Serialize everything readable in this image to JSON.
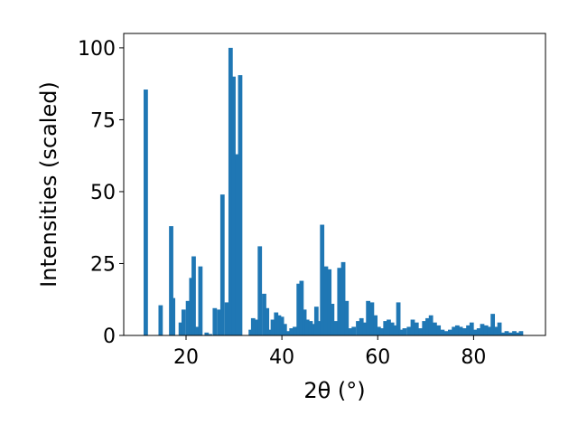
{
  "chart_data": {
    "type": "bar",
    "xlabel": "2θ (°)",
    "ylabel": "Intensities (scaled)",
    "xlim": [
      7,
      95
    ],
    "ylim": [
      0,
      105
    ],
    "x_ticks": [
      20,
      40,
      60,
      80
    ],
    "y_ticks": [
      0,
      25,
      50,
      75,
      100
    ],
    "grid": false,
    "bar_color": "#1f77b4",
    "bar_width": 0.9,
    "x": [
      11.6,
      14.7,
      16.9,
      17.3,
      18.9,
      19.5,
      20.4,
      21.1,
      21.6,
      22.3,
      23.0,
      24.3,
      25.0,
      26.0,
      26.9,
      27.6,
      28.5,
      29.3,
      29.9,
      30.7,
      31.3,
      33.5,
      34.0,
      34.8,
      35.4,
      36.3,
      36.9,
      37.5,
      38.1,
      38.8,
      39.4,
      40.0,
      40.6,
      41.3,
      42.0,
      42.7,
      43.5,
      44.1,
      44.7,
      45.3,
      46.0,
      46.6,
      47.2,
      47.8,
      48.4,
      49.2,
      49.9,
      50.5,
      51.2,
      52.0,
      52.8,
      53.5,
      54.3,
      55.0,
      55.9,
      56.6,
      57.3,
      58.0,
      58.8,
      59.5,
      60.2,
      60.9,
      61.6,
      62.3,
      63.0,
      63.7,
      64.3,
      64.9,
      65.6,
      66.5,
      67.3,
      68.1,
      68.9,
      69.7,
      70.4,
      71.1,
      71.9,
      72.7,
      73.5,
      74.3,
      75.1,
      75.9,
      76.6,
      77.3,
      78.1,
      78.9,
      79.6,
      80.4,
      81.1,
      81.8,
      82.6,
      83.3,
      84.0,
      84.7,
      85.4,
      86.1,
      86.9,
      87.7,
      88.5,
      89.2,
      89.9
    ],
    "values": [
      85.5,
      10.5,
      38,
      13,
      4.5,
      9,
      12,
      20,
      27.5,
      3,
      24,
      1,
      0.5,
      9.5,
      9,
      49,
      11.5,
      100,
      90,
      63,
      90.5,
      2,
      6,
      5.5,
      31,
      14.5,
      9.5,
      2,
      5.5,
      8,
      7,
      6.5,
      4,
      1.5,
      2.5,
      3,
      18,
      19,
      9,
      5.5,
      5,
      4,
      10,
      5,
      38.5,
      24,
      23,
      11,
      5,
      23.5,
      25.5,
      12,
      2.5,
      3,
      5,
      6,
      4.5,
      12,
      11.5,
      7,
      3,
      2.5,
      5,
      5.5,
      4.5,
      3.5,
      11.5,
      2,
      2.5,
      3,
      5.5,
      4.5,
      2.5,
      5,
      6,
      7,
      4.5,
      3.5,
      2,
      1.5,
      2,
      3,
      3.5,
      3,
      2.5,
      3.5,
      4.5,
      2,
      2.5,
      4,
      3.5,
      3,
      7.5,
      3,
      4.5,
      1,
      1.5,
      1,
      1.5,
      1,
      1.5
    ]
  }
}
